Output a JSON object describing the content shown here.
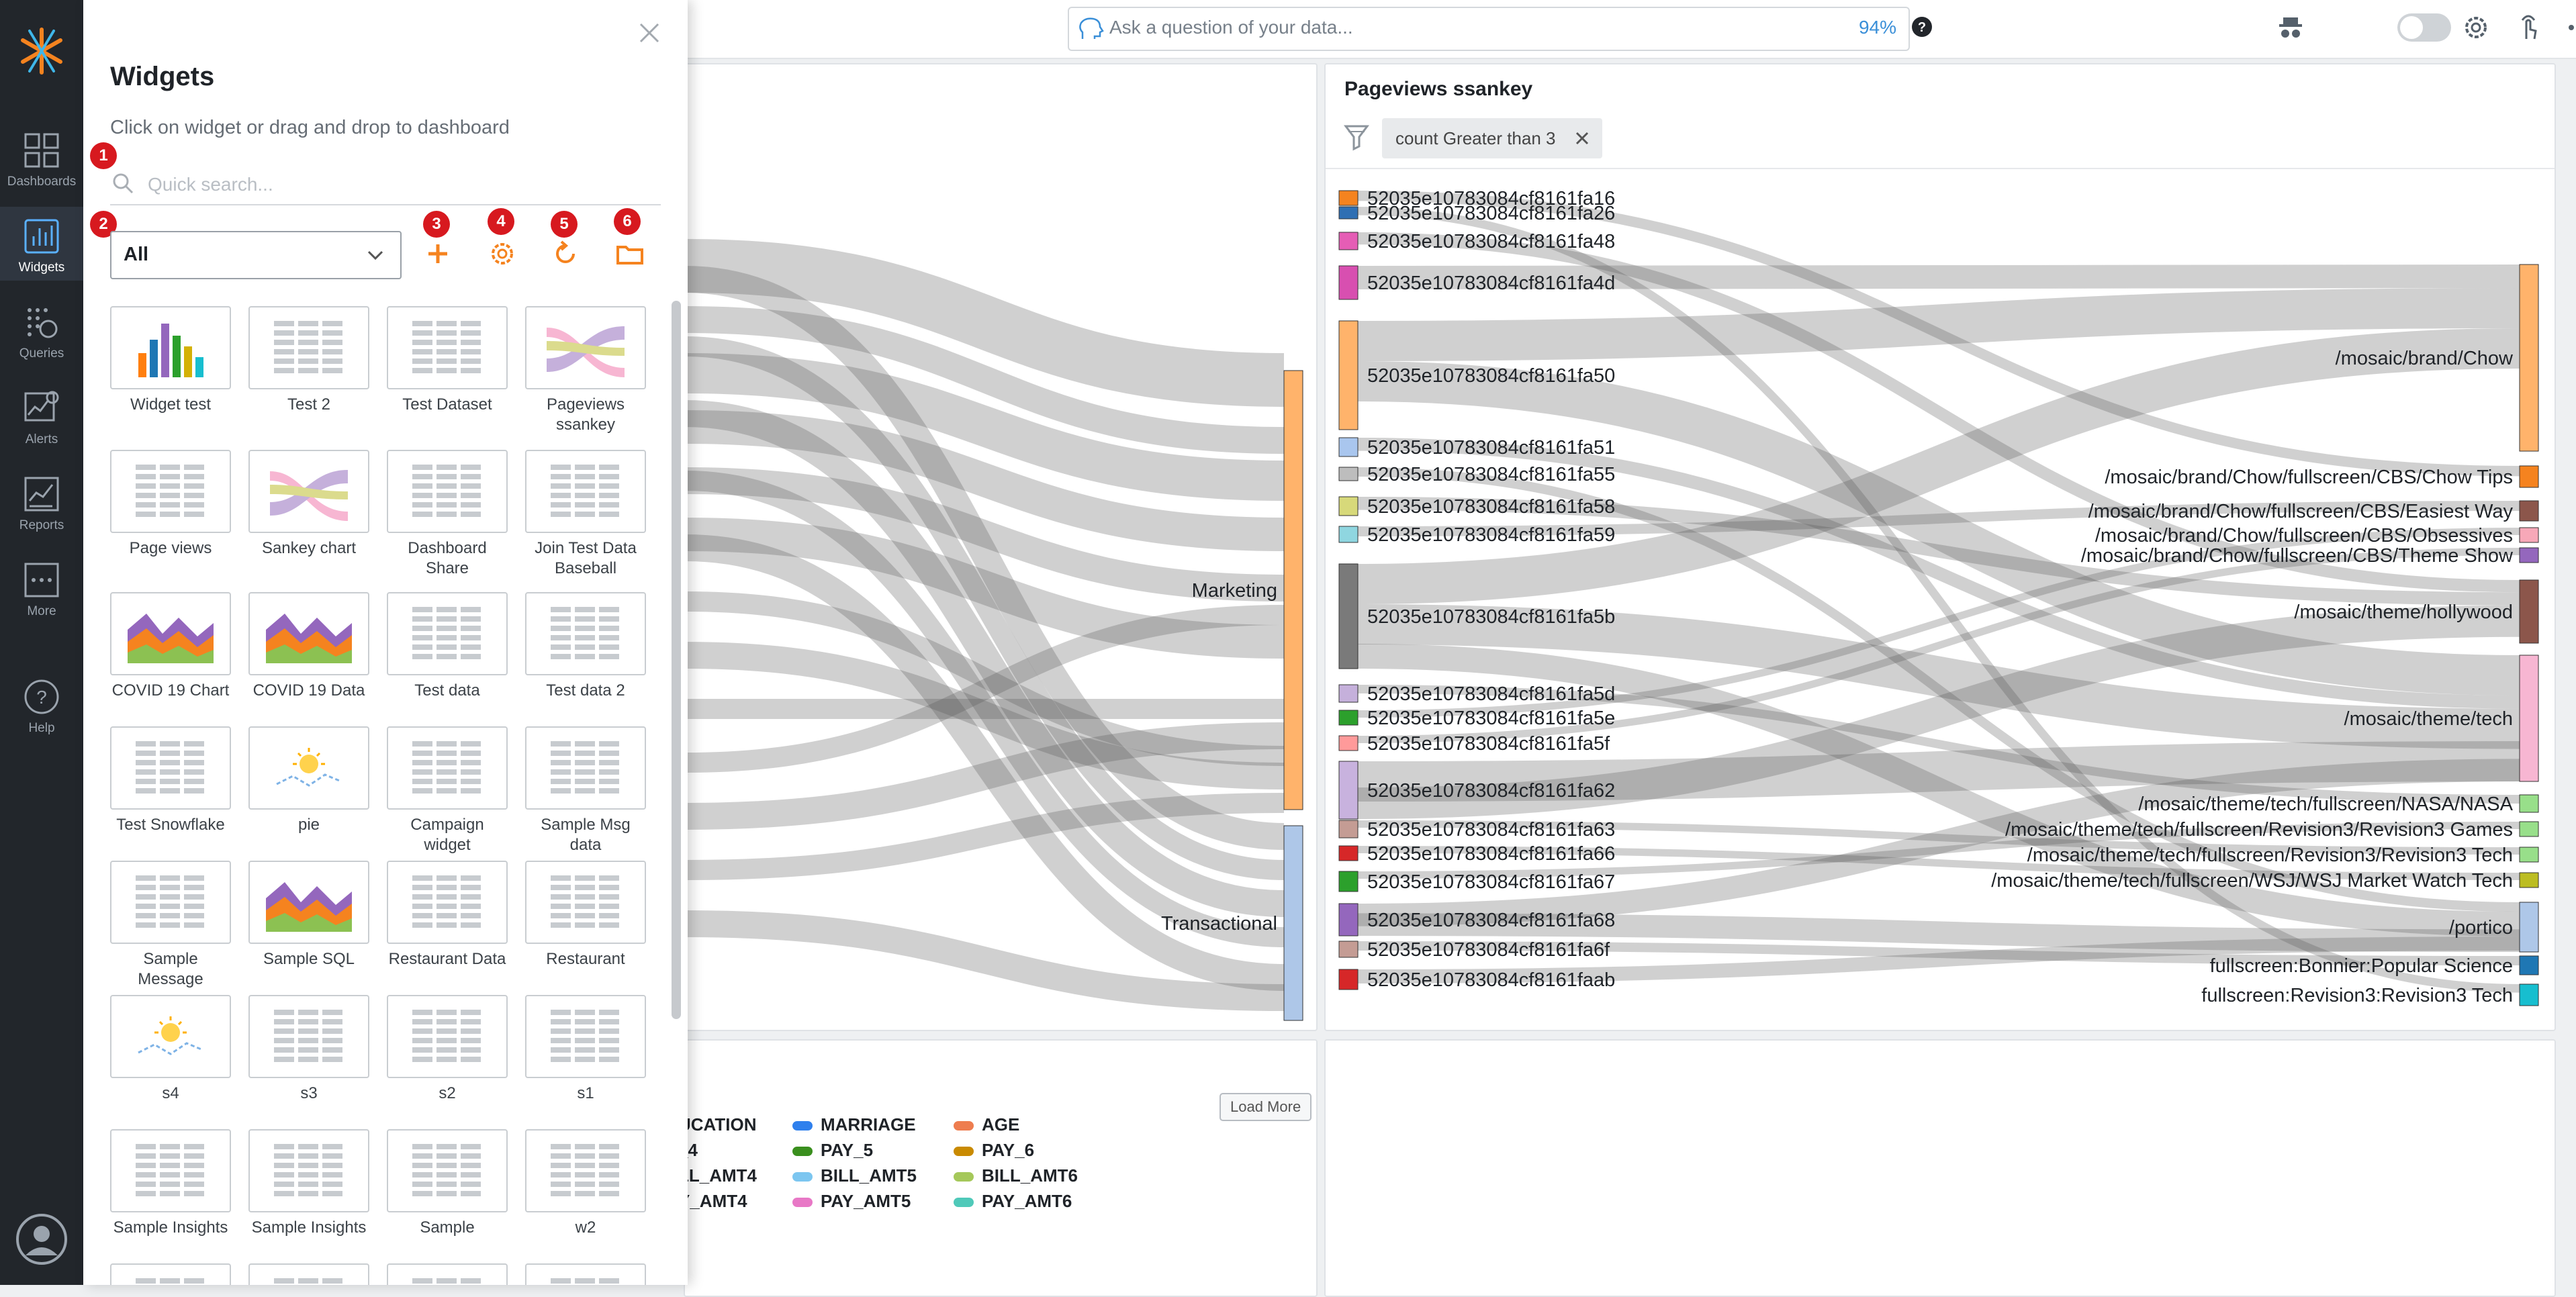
{
  "rail": {
    "items": [
      {
        "label": "Dashboards",
        "icon": "dashboards-icon"
      },
      {
        "label": "Widgets",
        "icon": "widgets-icon"
      },
      {
        "label": "Queries",
        "icon": "queries-icon"
      },
      {
        "label": "Alerts",
        "icon": "alerts-icon"
      },
      {
        "label": "Reports",
        "icon": "reports-icon"
      },
      {
        "label": "More",
        "icon": "more-icon"
      },
      {
        "label": "Help",
        "icon": "help-icon"
      }
    ],
    "active": "Widgets"
  },
  "topbar": {
    "ask_placeholder": "Ask a question of your data...",
    "ask_confidence": "94%"
  },
  "drawer": {
    "title": "Widgets",
    "subtitle": "Click on widget or drag and drop to dashboard",
    "search_placeholder": "Quick search...",
    "filter_value": "All",
    "badges": [
      "1",
      "2",
      "3",
      "4",
      "5",
      "6"
    ],
    "tiles": [
      {
        "label": "Widget test",
        "thumb": "bar"
      },
      {
        "label": "Test 2",
        "thumb": "table"
      },
      {
        "label": "Test Dataset",
        "thumb": "table"
      },
      {
        "label": "Pageviews ssankey",
        "thumb": "sankey"
      },
      {
        "label": "Page views",
        "thumb": "table"
      },
      {
        "label": "Sankey chart",
        "thumb": "sankey"
      },
      {
        "label": "Dashboard Share",
        "thumb": "table"
      },
      {
        "label": "Join Test Data Baseball",
        "thumb": "table"
      },
      {
        "label": "COVID 19 Chart",
        "thumb": "area"
      },
      {
        "label": "COVID 19 Data",
        "thumb": "area"
      },
      {
        "label": "Test data",
        "thumb": "table"
      },
      {
        "label": "Test data 2",
        "thumb": "table"
      },
      {
        "label": "Test Snowflake",
        "thumb": "table"
      },
      {
        "label": "pie",
        "thumb": "idea"
      },
      {
        "label": "Campaign widget",
        "thumb": "table"
      },
      {
        "label": "Sample Msg data",
        "thumb": "table"
      },
      {
        "label": "Sample Message",
        "thumb": "table"
      },
      {
        "label": "Sample SQL",
        "thumb": "area"
      },
      {
        "label": "Restaurant Data",
        "thumb": "table"
      },
      {
        "label": "Restaurant",
        "thumb": "table"
      },
      {
        "label": "s4",
        "thumb": "idea"
      },
      {
        "label": "s3",
        "thumb": "table"
      },
      {
        "label": "s2",
        "thumb": "table"
      },
      {
        "label": "s1",
        "thumb": "table"
      },
      {
        "label": "Sample Insights",
        "thumb": "table"
      },
      {
        "label": "Sample Insights",
        "thumb": "table"
      },
      {
        "label": "Sample",
        "thumb": "table"
      },
      {
        "label": "w2",
        "thumb": "table"
      },
      {
        "label": "",
        "thumb": "table"
      },
      {
        "label": "",
        "thumb": "table"
      },
      {
        "label": "",
        "thumb": "table"
      },
      {
        "label": "",
        "thumb": "table"
      }
    ]
  },
  "left_panel": {
    "nodes": [
      "Marketing",
      "Transactional"
    ]
  },
  "right_panel": {
    "title": "Pageviews ssankey",
    "filter_chip": "count Greater than 3"
  },
  "bottom_panel": {
    "load_more": "Load More",
    "legend": [
      "UCATION",
      "MARRIAGE",
      "AGE",
      "_4",
      "PAY_5",
      "PAY_6",
      "LL_AMT4",
      "BILL_AMT5",
      "BILL_AMT6",
      "Y_AMT4",
      "PAY_AMT5",
      "PAY_AMT6"
    ]
  },
  "chart_data": {
    "type": "sankey",
    "title": "Pageviews ssankey",
    "filter": "count Greater than 3",
    "sources": [
      {
        "name": "52035e10783084cf8161fa16",
        "color": "#f5831f",
        "value": 1
      },
      {
        "name": "52035e10783084cf8161fa26",
        "color": "#2f6fb3",
        "value": 1
      },
      {
        "name": "52035e10783084cf8161fa48",
        "color": "#e55db5",
        "value": 1
      },
      {
        "name": "52035e10783084cf8161fa4d",
        "color": "#d84fb0",
        "value": 2
      },
      {
        "name": "52035e10783084cf8161fa50",
        "color": "#ffb36b",
        "value": 6
      },
      {
        "name": "52035e10783084cf8161fa51",
        "color": "#a9c6ee",
        "value": 1
      },
      {
        "name": "52035e10783084cf8161fa55",
        "color": "#bdbdbd",
        "value": 1
      },
      {
        "name": "52035e10783084cf8161fa58",
        "color": "#d7d97a",
        "value": 1
      },
      {
        "name": "52035e10783084cf8161fa59",
        "color": "#8fd6e0",
        "value": 1
      },
      {
        "name": "52035e10783084cf8161fa5b",
        "color": "#7a7a7a",
        "value": 6
      },
      {
        "name": "52035e10783084cf8161fa5d",
        "color": "#c5b0db",
        "value": 1
      },
      {
        "name": "52035e10783084cf8161fa5e",
        "color": "#2ca02c",
        "value": 1
      },
      {
        "name": "52035e10783084cf8161fa5f",
        "color": "#ff9a9a",
        "value": 1
      },
      {
        "name": "52035e10783084cf8161fa62",
        "color": "#c8b2de",
        "value": 4
      },
      {
        "name": "52035e10783084cf8161fa63",
        "color": "#c49c94",
        "value": 1
      },
      {
        "name": "52035e10783084cf8161fa66",
        "color": "#d62728",
        "value": 1
      },
      {
        "name": "52035e10783084cf8161fa67",
        "color": "#2ca02c",
        "value": 1
      },
      {
        "name": "52035e10783084cf8161fa68",
        "color": "#9467bd",
        "value": 2
      },
      {
        "name": "52035e10783084cf8161fa6f",
        "color": "#c49c94",
        "value": 1
      },
      {
        "name": "52035e10783084cf8161faab",
        "color": "#d62728",
        "value": 1
      }
    ],
    "targets": [
      {
        "name": "/mosaic/brand/Chow",
        "color": "#ffb36b",
        "value": 14
      },
      {
        "name": "/mosaic/brand/Chow/fullscreen/CBS/Chow Tips",
        "color": "#f5831f",
        "value": 1
      },
      {
        "name": "/mosaic/brand/Chow/fullscreen/CBS/Easiest Way",
        "color": "#8c564b",
        "value": 1
      },
      {
        "name": "/mosaic/brand/Chow/fullscreen/CBS/Obsessives",
        "color": "#f7a8b8",
        "value": 1
      },
      {
        "name": "/mosaic/brand/Chow/fullscreen/CBS/Theme Show",
        "color": "#9467bd",
        "value": 1
      },
      {
        "name": "/mosaic/theme/hollywood",
        "color": "#8c564b",
        "value": 5
      },
      {
        "name": "/mosaic/theme/tech",
        "color": "#f7b6d2",
        "value": 11
      },
      {
        "name": "/mosaic/theme/tech/fullscreen/NASA/NASA",
        "color": "#98df8a",
        "value": 1
      },
      {
        "name": "/mosaic/theme/tech/fullscreen/Revision3/Revision3 Games",
        "color": "#98df8a",
        "value": 1
      },
      {
        "name": "/mosaic/theme/tech/fullscreen/Revision3/Revision3 Tech",
        "color": "#98df8a",
        "value": 1
      },
      {
        "name": "/mosaic/theme/tech/fullscreen/WSJ/WSJ Market Watch Tech",
        "color": "#bcbd22",
        "value": 1
      },
      {
        "name": "/portico",
        "color": "#aec7e8",
        "value": 4
      },
      {
        "name": "fullscreen:Bonnier:Popular Science",
        "color": "#1f77b4",
        "value": 1
      },
      {
        "name": "fullscreen:Revision3:Revision3 Tech",
        "color": "#17becf",
        "value": 1
      }
    ],
    "left_targets": [
      {
        "name": "Marketing",
        "color": "#ffb36b",
        "value": 13
      },
      {
        "name": "Transactional",
        "color": "#aec7e8",
        "value": 6
      }
    ]
  },
  "colors": {
    "rail_bg": "#22262b",
    "accent_orange": "#f5831f",
    "badge_red": "#d7191f",
    "link_blue": "#3a8fd8"
  }
}
